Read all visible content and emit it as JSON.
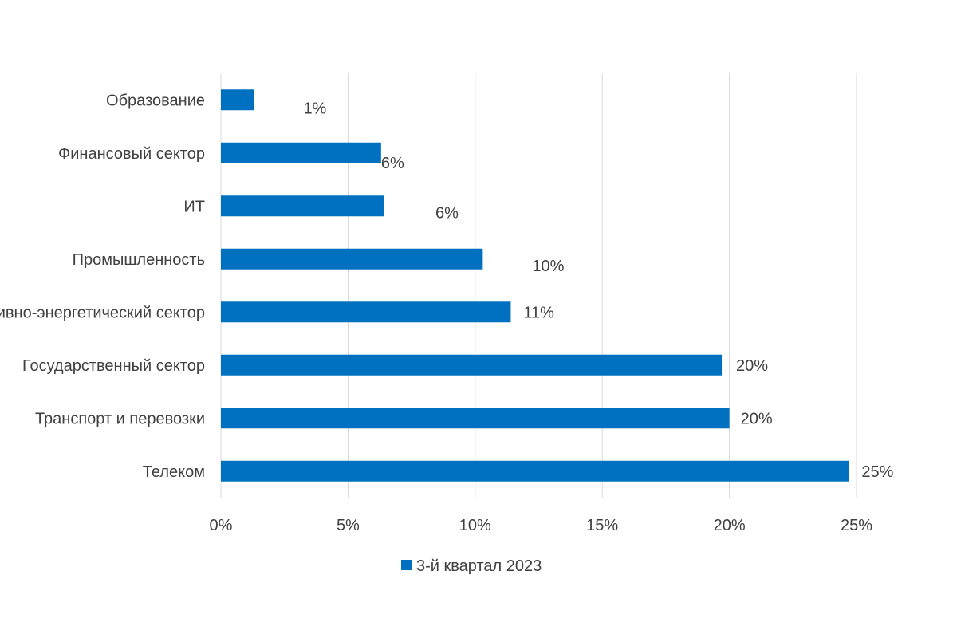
{
  "chart_data": {
    "type": "bar",
    "orientation": "horizontal",
    "categories": [
      "Образование",
      "Финансовый сектор",
      "ИТ",
      "Промышленность",
      "Топливно-энергетический сектор",
      "Государственный сектор",
      "Транспорт и перевозки",
      "Телеком"
    ],
    "series": [
      {
        "name": "3-й квартал 2023",
        "color": "#0070C0",
        "values": [
          1.3,
          6.3,
          6.4,
          10.3,
          11.4,
          19.7,
          20.0,
          24.7
        ],
        "data_labels": [
          "1%",
          "6%",
          "6%",
          "10%",
          "11%",
          "20%",
          "20%",
          "25%"
        ]
      }
    ],
    "xlim": [
      0,
      25
    ],
    "x_ticks": [
      0,
      5,
      10,
      15,
      20,
      25
    ],
    "x_tick_labels": [
      "0%",
      "5%",
      "10%",
      "15%",
      "20%",
      "25%"
    ],
    "grid": "vertical",
    "legend": "bottom-center",
    "title": "",
    "xlabel": "",
    "ylabel": ""
  }
}
